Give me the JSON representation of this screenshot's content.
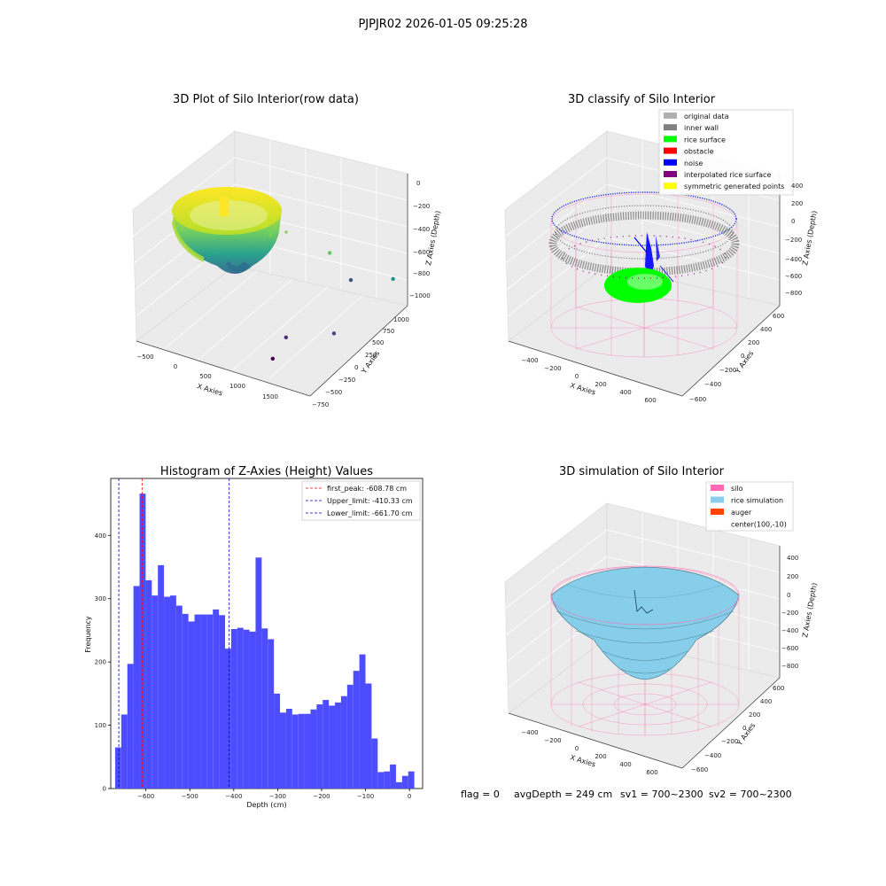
{
  "suptitle": "PJPJR02 2026-01-05 09:25:28",
  "footer": {
    "flag": "flag = 0",
    "avg": "avgDepth = 249 cm",
    "sv1": "sv1 = 700~2300",
    "sv2": "sv2 = 700~2300"
  },
  "chart_data": [
    {
      "type": "scatter",
      "title": "3D Plot of Silo Interior(row data)",
      "xlabel": "X Axies",
      "ylabel": "Y Axies",
      "zlabel": "Z Axies (Depth)",
      "x_ticks": [
        "−500",
        "0",
        "500",
        "1000",
        "1500"
      ],
      "y_ticks": [
        "−750",
        "−500",
        "−250",
        "0",
        "250",
        "500",
        "750",
        "1000"
      ],
      "z_ticks": [
        "0",
        "−200",
        "−400",
        "−600",
        "−800",
        "−1000"
      ],
      "xlim": [
        -600,
        1800
      ],
      "ylim": [
        -800,
        1100
      ],
      "zlim": [
        -1100,
        100
      ],
      "colormap": "viridis",
      "outliers": [
        {
          "x": 1150,
          "y": 500,
          "z": -500
        },
        {
          "x": 1300,
          "y": 700,
          "z": -800
        },
        {
          "x": 1600,
          "y": 1100,
          "z": -900
        },
        {
          "x": 900,
          "y": 0,
          "z": -1100
        },
        {
          "x": 1350,
          "y": 300,
          "z": -1100
        },
        {
          "x": 1000,
          "y": -400,
          "z": -1100
        }
      ]
    },
    {
      "type": "scatter",
      "title": "3D classify of Silo Interior",
      "xlabel": "X Axies",
      "ylabel": "Y Axies",
      "zlabel": "Z Axies (Depth)",
      "x_ticks": [
        "−400",
        "−200",
        "0",
        "200",
        "400",
        "600"
      ],
      "y_ticks": [
        "−600",
        "−400",
        "−200",
        "0",
        "200",
        "400",
        "600"
      ],
      "z_ticks": [
        "400",
        "200",
        "0",
        "−200",
        "−400",
        "−600",
        "−800"
      ],
      "legend": [
        {
          "label": "original data",
          "color": "#b0b0b0"
        },
        {
          "label": "inner wall",
          "color": "#808080"
        },
        {
          "label": "rice surface",
          "color": "#00ff00"
        },
        {
          "label": "obstacle",
          "color": "#ff0000"
        },
        {
          "label": "noise",
          "color": "#0000ff"
        },
        {
          "label": "interpolated rice surface",
          "color": "#800080"
        },
        {
          "label": "symmetric generated points",
          "color": "#ffff00"
        }
      ]
    },
    {
      "type": "bar",
      "title": "Histogram of Z-Axies (Height) Values",
      "xlabel": "Depth (cm)",
      "ylabel": "Frequency",
      "bin_start": -670,
      "bin_width": 13.9,
      "values": [
        65,
        117,
        197,
        320,
        466,
        329,
        305,
        353,
        303,
        305,
        289,
        276,
        264,
        275,
        275,
        275,
        283,
        274,
        221,
        252,
        254,
        251,
        248,
        365,
        253,
        236,
        150,
        120,
        126,
        117,
        118,
        118,
        125,
        133,
        140,
        131,
        136,
        146,
        164,
        186,
        212,
        166,
        79,
        26,
        27,
        38,
        10,
        20,
        27
      ],
      "xlim": [
        -680,
        30
      ],
      "ylim": [
        0,
        490
      ],
      "x_ticks": [
        "−600",
        "−500",
        "−400",
        "−300",
        "−200",
        "−100",
        "0"
      ],
      "y_ticks": [
        "0",
        "100",
        "200",
        "300",
        "400"
      ],
      "bar_color": "#4d4dff",
      "vlines": [
        {
          "x": -608.78,
          "label": "first_peak: -608.78 cm",
          "color": "#ff0000"
        },
        {
          "x": -410.33,
          "label": "Upper_limit: -410.33 cm",
          "color": "#0000b0"
        },
        {
          "x": -661.7,
          "label": "Lower_limit: -661.70 cm",
          "color": "#0000b0"
        }
      ]
    },
    {
      "type": "area",
      "title": "3D simulation of Silo Interior",
      "xlabel": "X Axies",
      "ylabel": "Y Axies",
      "zlabel": "Z Axies (Depth)",
      "x_ticks": [
        "−400",
        "−200",
        "0",
        "200",
        "400",
        "600"
      ],
      "y_ticks": [
        "−600",
        "−400",
        "−200",
        "0",
        "200",
        "400",
        "600"
      ],
      "z_ticks": [
        "400",
        "200",
        "0",
        "−200",
        "−400",
        "−600",
        "−800"
      ],
      "legend": [
        {
          "label": "silo",
          "color": "#ff69b4"
        },
        {
          "label": "rice simulation",
          "color": "#87ceeb"
        },
        {
          "label": "auger",
          "color": "#ff4500"
        },
        {
          "label": "center(100,-10)",
          "color": ""
        }
      ]
    }
  ]
}
